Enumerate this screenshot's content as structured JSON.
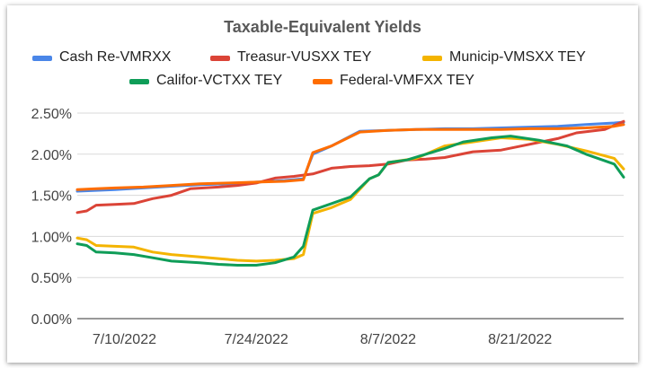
{
  "chart_data": {
    "type": "line",
    "title": "Taxable-Equivalent Yields",
    "xlabel": "",
    "ylabel": "",
    "ylim": [
      0,
      0.025
    ],
    "yticks": [
      "0.00%",
      "0.50%",
      "1.00%",
      "1.50%",
      "2.00%",
      "2.50%"
    ],
    "xticks": [
      "7/10/2022",
      "7/24/2022",
      "8/7/2022",
      "8/21/2022"
    ],
    "xrange": [
      "2022-07-05",
      "2022-09-01"
    ],
    "grid": true,
    "legend_position": "top",
    "series": [
      {
        "name": "Cash Re-VMRXX",
        "color": "#4a86e8",
        "x": [
          "2022-07-05",
          "2022-07-07",
          "2022-07-09",
          "2022-07-12",
          "2022-07-15",
          "2022-07-18",
          "2022-07-21",
          "2022-07-24",
          "2022-07-27",
          "2022-07-29",
          "2022-07-30",
          "2022-08-01",
          "2022-08-04",
          "2022-08-07",
          "2022-08-10",
          "2022-08-13",
          "2022-08-16",
          "2022-08-19",
          "2022-08-22",
          "2022-08-25",
          "2022-08-28",
          "2022-08-31",
          "2022-09-01"
        ],
        "values": [
          0.0155,
          0.0156,
          0.0157,
          0.0159,
          0.0161,
          0.0163,
          0.0164,
          0.0166,
          0.0168,
          0.017,
          0.02,
          0.021,
          0.0228,
          0.0229,
          0.023,
          0.0231,
          0.0231,
          0.0232,
          0.0233,
          0.0234,
          0.0236,
          0.0238,
          0.0239
        ]
      },
      {
        "name": "Treasur-VUSXX TEY",
        "color": "#db4437",
        "x": [
          "2022-07-05",
          "2022-07-06",
          "2022-07-07",
          "2022-07-09",
          "2022-07-11",
          "2022-07-13",
          "2022-07-15",
          "2022-07-17",
          "2022-07-20",
          "2022-07-22",
          "2022-07-24",
          "2022-07-26",
          "2022-07-28",
          "2022-07-30",
          "2022-08-01",
          "2022-08-03",
          "2022-08-05",
          "2022-08-07",
          "2022-08-09",
          "2022-08-11",
          "2022-08-13",
          "2022-08-16",
          "2022-08-19",
          "2022-08-22",
          "2022-08-25",
          "2022-08-27",
          "2022-08-30",
          "2022-09-01"
        ],
        "values": [
          0.0129,
          0.0131,
          0.0138,
          0.0139,
          0.014,
          0.0146,
          0.015,
          0.0158,
          0.016,
          0.0162,
          0.0165,
          0.0171,
          0.0173,
          0.0176,
          0.0183,
          0.0185,
          0.0186,
          0.0188,
          0.0193,
          0.0194,
          0.0196,
          0.0203,
          0.0205,
          0.0212,
          0.0219,
          0.0226,
          0.023,
          0.024
        ]
      },
      {
        "name": "Municip-VMSXX TEY",
        "color": "#f4b400",
        "x": [
          "2022-07-05",
          "2022-07-06",
          "2022-07-07",
          "2022-07-09",
          "2022-07-11",
          "2022-07-13",
          "2022-07-15",
          "2022-07-18",
          "2022-07-20",
          "2022-07-22",
          "2022-07-24",
          "2022-07-26",
          "2022-07-28",
          "2022-07-29",
          "2022-07-30",
          "2022-08-01",
          "2022-08-03",
          "2022-08-05",
          "2022-08-06",
          "2022-08-07",
          "2022-08-10",
          "2022-08-13",
          "2022-08-16",
          "2022-08-19",
          "2022-08-22",
          "2022-08-25",
          "2022-08-28",
          "2022-08-31",
          "2022-09-01"
        ],
        "values": [
          0.0098,
          0.0096,
          0.0089,
          0.0088,
          0.0087,
          0.0081,
          0.0078,
          0.0075,
          0.0073,
          0.0071,
          0.007,
          0.0071,
          0.0073,
          0.0078,
          0.0128,
          0.0135,
          0.0145,
          0.017,
          0.0175,
          0.019,
          0.0195,
          0.021,
          0.0215,
          0.022,
          0.0218,
          0.0212,
          0.0204,
          0.0195,
          0.0182
        ]
      },
      {
        "name": "Califor-VCTXX TEY",
        "color": "#0f9d58",
        "x": [
          "2022-07-05",
          "2022-07-06",
          "2022-07-07",
          "2022-07-09",
          "2022-07-11",
          "2022-07-13",
          "2022-07-15",
          "2022-07-18",
          "2022-07-20",
          "2022-07-22",
          "2022-07-24",
          "2022-07-26",
          "2022-07-28",
          "2022-07-29",
          "2022-07-30",
          "2022-08-01",
          "2022-08-03",
          "2022-08-05",
          "2022-08-06",
          "2022-08-07",
          "2022-08-09",
          "2022-08-11",
          "2022-08-13",
          "2022-08-15",
          "2022-08-18",
          "2022-08-20",
          "2022-08-23",
          "2022-08-26",
          "2022-08-28",
          "2022-08-31",
          "2022-09-01"
        ],
        "values": [
          0.0091,
          0.0089,
          0.0081,
          0.008,
          0.0078,
          0.0074,
          0.007,
          0.0068,
          0.0066,
          0.0065,
          0.0065,
          0.0068,
          0.0075,
          0.0088,
          0.0132,
          0.014,
          0.0148,
          0.017,
          0.0175,
          0.019,
          0.0193,
          0.02,
          0.0207,
          0.0215,
          0.022,
          0.0222,
          0.0217,
          0.021,
          0.02,
          0.0188,
          0.0172
        ]
      },
      {
        "name": "Federal-VMFXX TEY",
        "color": "#ff6d00",
        "x": [
          "2022-07-05",
          "2022-07-07",
          "2022-07-09",
          "2022-07-12",
          "2022-07-15",
          "2022-07-18",
          "2022-07-21",
          "2022-07-24",
          "2022-07-27",
          "2022-07-29",
          "2022-07-30",
          "2022-08-01",
          "2022-08-04",
          "2022-08-07",
          "2022-08-10",
          "2022-08-13",
          "2022-08-16",
          "2022-08-19",
          "2022-08-22",
          "2022-08-25",
          "2022-08-28",
          "2022-08-31",
          "2022-09-01"
        ],
        "values": [
          0.0157,
          0.0158,
          0.0159,
          0.016,
          0.0162,
          0.0164,
          0.0165,
          0.0166,
          0.0167,
          0.0169,
          0.0202,
          0.021,
          0.0227,
          0.0229,
          0.023,
          0.023,
          0.023,
          0.023,
          0.0231,
          0.0231,
          0.0232,
          0.0234,
          0.0236
        ]
      }
    ]
  }
}
